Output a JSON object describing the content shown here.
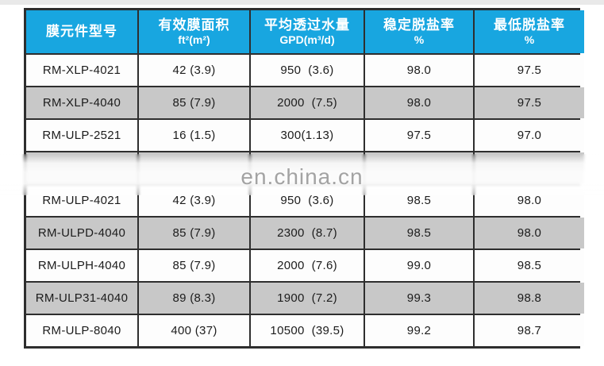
{
  "watermark": {
    "text": "en.china.cn",
    "color": "#a3a3a3"
  },
  "table": {
    "colors": {
      "header_bg": "#18a6e0",
      "header_text": "#ffffff",
      "row_alt_bg": "#c8c8c8",
      "row_bg": "#fdfdfd",
      "border": "#2e2e2e"
    },
    "header": {
      "columns": [
        {
          "title": "膜元件型号",
          "sub": ""
        },
        {
          "title": "有效膜面积",
          "sub": "ft²(m²)"
        },
        {
          "title": "平均透过水量",
          "sub": "GPD(m³/d)"
        },
        {
          "title": "稳定脱盐率",
          "sub": "%"
        },
        {
          "title": "最低脱盐率",
          "sub": "%"
        }
      ]
    },
    "rows": [
      {
        "cells": [
          "RM-XLP-4021",
          "42 (3.9)",
          "950  (3.6)",
          "98.0",
          "97.5"
        ],
        "obscured": false
      },
      {
        "cells": [
          "RM-XLP-4040",
          "85 (7.9)",
          "2000  (7.5)",
          "98.0",
          "97.5"
        ],
        "obscured": false
      },
      {
        "cells": [
          "RM-ULP-2521",
          "16 (1.5)",
          "300(1.13)",
          "97.5",
          "97.0"
        ],
        "obscured": false
      },
      {
        "cells": [
          "",
          "",
          "",
          "",
          ""
        ],
        "obscured": true
      },
      {
        "cells": [
          "RM-ULP-4021",
          "42 (3.9)",
          "950  (3.6)",
          "98.5",
          "98.0"
        ],
        "obscured": false
      },
      {
        "cells": [
          "RM-ULPD-4040",
          "85 (7.9)",
          "2300  (8.7)",
          "98.5",
          "98.0"
        ],
        "obscured": false
      },
      {
        "cells": [
          "RM-ULPH-4040",
          "85 (7.9)",
          "2000  (7.6)",
          "99.0",
          "98.5"
        ],
        "obscured": false
      },
      {
        "cells": [
          "RM-ULP31-4040",
          "89 (8.3)",
          "1900  (7.2)",
          "99.3",
          "98.8"
        ],
        "obscured": false
      },
      {
        "cells": [
          "RM-ULP-8040",
          "400 (37)",
          "10500  (39.5)",
          "99.2",
          "98.7"
        ],
        "obscured": false
      }
    ]
  }
}
